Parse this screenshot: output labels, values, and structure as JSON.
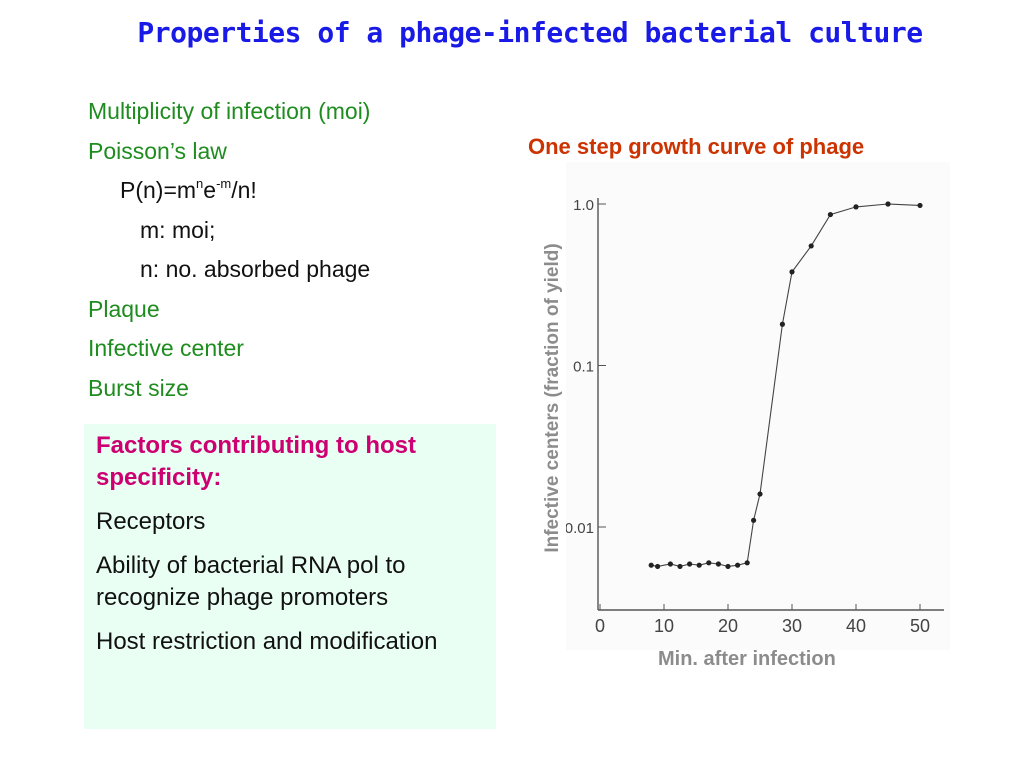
{
  "title": "Properties of a phage-infected bacterial culture",
  "bullets": {
    "moi": "Multiplicity of infection (moi)",
    "poisson": "Poisson’s law",
    "formula": {
      "p1": "P(n)=m",
      "sup1": "n",
      "p2": "e",
      "sup2": "-m",
      "p3": "/n!"
    },
    "m_def": "m: moi;",
    "n_def": "n: no. absorbed phage",
    "plaque": "Plaque",
    "infective_center": "Infective  center",
    "burst": "Burst size"
  },
  "box": {
    "heading": "Factors contributing to host specificity:",
    "items": [
      "Receptors",
      "Ability of bacterial RNA pol to recognize phage promoters",
      "Host restriction and modification"
    ]
  },
  "chart_data": {
    "type": "line",
    "title": "One step growth curve of phage",
    "xlabel": "Min. after infection",
    "ylabel": "Infective centers (fraction of yield)",
    "y_scale": "log",
    "xlim": [
      0,
      50
    ],
    "ylim": [
      0.005,
      1.2
    ],
    "x_ticks": [
      "0",
      "10",
      "20",
      "30",
      "40",
      "50"
    ],
    "y_ticks": [
      "0.01",
      "0.1",
      "1.0"
    ],
    "grid": false,
    "series": [
      {
        "points": [
          [
            8,
            0.0058
          ],
          [
            9,
            0.0057
          ],
          [
            11,
            0.0059
          ],
          [
            12.5,
            0.0057
          ],
          [
            14,
            0.0059
          ],
          [
            15.5,
            0.0058
          ],
          [
            17,
            0.006
          ],
          [
            18.5,
            0.0059
          ],
          [
            20,
            0.0057
          ],
          [
            21.5,
            0.0058
          ],
          [
            23,
            0.006
          ],
          [
            24,
            0.011
          ],
          [
            25,
            0.016
          ],
          [
            28.5,
            0.18
          ],
          [
            30,
            0.38
          ],
          [
            33,
            0.55
          ],
          [
            36,
            0.86
          ],
          [
            40,
            0.96
          ],
          [
            45,
            1.0
          ],
          [
            50,
            0.98
          ]
        ]
      }
    ]
  },
  "colors": {
    "title": "#1a1ae6",
    "green_text": "#1f8c1f",
    "box_heading": "#cc0070",
    "box_bg": "#eafff4",
    "chart_title": "#cc3300",
    "axis_labels": "#8c8c8c"
  }
}
